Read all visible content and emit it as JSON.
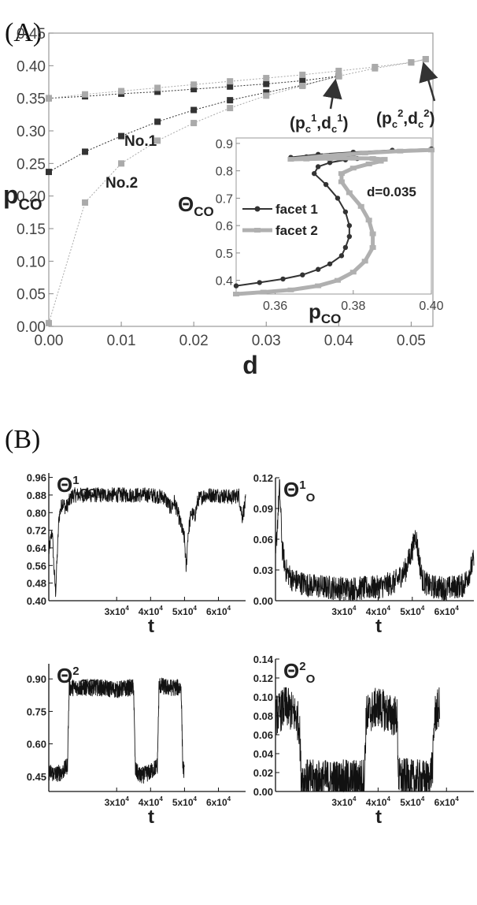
{
  "panel_a_label": "(A)",
  "panel_b_label": "(B)",
  "chart_data": [
    {
      "type": "line",
      "panel": "A",
      "xlabel": "d",
      "ylabel": "p",
      "ylabel_sub": "CO",
      "xlim": [
        0,
        0.053
      ],
      "ylim": [
        0,
        0.45
      ],
      "xticks": [
        "0.00",
        "0.01",
        "0.02",
        "0.03",
        "0.04",
        "0.05"
      ],
      "yticks": [
        "0.00",
        "0.05",
        "0.10",
        "0.15",
        "0.20",
        "0.25",
        "0.30",
        "0.35",
        "0.40",
        "0.45"
      ],
      "annotations": [
        "No.1",
        "No.2"
      ],
      "point_label_1": {
        "p": "p",
        "sub": "c",
        "sup": "1",
        "d": "d",
        "dsub": "c",
        "dsup": "1"
      },
      "point_label_2": {
        "p": "p",
        "sub": "c",
        "sup": "2",
        "d": "d",
        "dsub": "c",
        "dsup": "2"
      },
      "series": [
        {
          "name": "facet1_upper",
          "color": "#333333",
          "x": [
            0,
            0.005,
            0.01,
            0.015,
            0.02,
            0.025,
            0.03,
            0.035,
            0.04
          ],
          "y": [
            0.35,
            0.353,
            0.357,
            0.36,
            0.364,
            0.368,
            0.372,
            0.377,
            0.384
          ]
        },
        {
          "name": "facet1_lower",
          "color": "#333333",
          "x": [
            0,
            0.005,
            0.01,
            0.015,
            0.02,
            0.025,
            0.03,
            0.035,
            0.04
          ],
          "y": [
            0.237,
            0.268,
            0.292,
            0.314,
            0.332,
            0.347,
            0.359,
            0.37,
            0.384
          ]
        },
        {
          "name": "facet2_upper",
          "color": "#aaaaaa",
          "x": [
            0,
            0.005,
            0.01,
            0.015,
            0.02,
            0.025,
            0.03,
            0.035,
            0.04,
            0.045,
            0.05,
            0.052
          ],
          "y": [
            0.35,
            0.356,
            0.361,
            0.366,
            0.371,
            0.376,
            0.381,
            0.386,
            0.392,
            0.398,
            0.405,
            0.41
          ]
        },
        {
          "name": "facet2_lower",
          "color": "#aaaaaa",
          "x": [
            0,
            0.005,
            0.01,
            0.015,
            0.02,
            0.025,
            0.03,
            0.035,
            0.04,
            0.045,
            0.05,
            0.052
          ],
          "y": [
            0.005,
            0.19,
            0.25,
            0.285,
            0.312,
            0.335,
            0.354,
            0.369,
            0.384,
            0.396,
            0.405,
            0.41
          ]
        }
      ],
      "inset": {
        "type": "line",
        "xlabel": "p",
        "xlabel_sub": "CO",
        "ylabel": "Θ",
        "ylabel_sub": "CO",
        "xlim": [
          0.35,
          0.4
        ],
        "ylim": [
          0.35,
          0.92
        ],
        "xticks": [
          "0.36",
          "0.38",
          "0.40"
        ],
        "yticks": [
          "0.4",
          "0.5",
          "0.6",
          "0.7",
          "0.8",
          "0.9"
        ],
        "annotation": "d=0.035",
        "legend": [
          "facet 1",
          "facet 2"
        ],
        "series": [
          {
            "name": "facet 1",
            "color": "#333333",
            "points": [
              [
                0.35,
                0.38
              ],
              [
                0.356,
                0.392
              ],
              [
                0.362,
                0.405
              ],
              [
                0.367,
                0.42
              ],
              [
                0.371,
                0.44
              ],
              [
                0.374,
                0.46
              ],
              [
                0.377,
                0.49
              ],
              [
                0.378,
                0.52
              ],
              [
                0.379,
                0.56
              ],
              [
                0.379,
                0.6
              ],
              [
                0.378,
                0.65
              ],
              [
                0.376,
                0.7
              ],
              [
                0.373,
                0.75
              ],
              [
                0.37,
                0.79
              ],
              [
                0.371,
                0.815
              ],
              [
                0.374,
                0.83
              ],
              [
                0.378,
                0.84
              ],
              [
                0.381,
                0.845
              ],
              [
                0.38,
                0.85
              ],
              [
                0.376,
                0.852
              ],
              [
                0.372,
                0.852
              ],
              [
                0.368,
                0.851
              ],
              [
                0.364,
                0.849
              ],
              [
                0.371,
                0.86
              ],
              [
                0.38,
                0.868
              ],
              [
                0.39,
                0.875
              ],
              [
                0.4,
                0.88
              ]
            ]
          },
          {
            "name": "facet 2",
            "color": "#b0b0b0",
            "points": [
              [
                0.35,
                0.35
              ],
              [
                0.357,
                0.357
              ],
              [
                0.364,
                0.365
              ],
              [
                0.371,
                0.38
              ],
              [
                0.376,
                0.4
              ],
              [
                0.38,
                0.43
              ],
              [
                0.383,
                0.47
              ],
              [
                0.385,
                0.52
              ],
              [
                0.385,
                0.57
              ],
              [
                0.384,
                0.62
              ],
              [
                0.382,
                0.67
              ],
              [
                0.379,
                0.72
              ],
              [
                0.377,
                0.76
              ],
              [
                0.377,
                0.79
              ],
              [
                0.38,
                0.81
              ],
              [
                0.384,
                0.825
              ],
              [
                0.387,
                0.835
              ],
              [
                0.388,
                0.842
              ],
              [
                0.385,
                0.845
              ],
              [
                0.38,
                0.846
              ],
              [
                0.374,
                0.845
              ],
              [
                0.368,
                0.843
              ],
              [
                0.364,
                0.842
              ],
              [
                0.373,
                0.855
              ],
              [
                0.383,
                0.865
              ],
              [
                0.392,
                0.872
              ],
              [
                0.4,
                0.876
              ]
            ]
          }
        ]
      }
    },
    {
      "type": "line",
      "panel": "B1",
      "label": "Θ",
      "label_sup": "1",
      "label_sub": "CO",
      "xlabel": "t",
      "ylim": [
        0.4,
        0.98
      ],
      "xlim": [
        10000,
        68000
      ],
      "yticks": [
        "0.40",
        "0.48",
        "0.56",
        "0.64",
        "0.72",
        "0.80",
        "0.88",
        "0.96"
      ],
      "xticks": [
        {
          "m": "3x10",
          "e": "4"
        },
        {
          "m": "4x10",
          "e": "4"
        },
        {
          "m": "5x10",
          "e": "4"
        },
        {
          "m": "6x10",
          "e": "4"
        }
      ],
      "envelope": {
        "color": "#111111",
        "points": [
          [
            10000,
            0.62
          ],
          [
            11000,
            0.72
          ],
          [
            11500,
            0.55
          ],
          [
            12000,
            0.44
          ],
          [
            13000,
            0.78
          ],
          [
            14000,
            0.85
          ],
          [
            15000,
            0.82
          ],
          [
            17000,
            0.88
          ],
          [
            20000,
            0.88
          ],
          [
            25000,
            0.88
          ],
          [
            30000,
            0.88
          ],
          [
            35000,
            0.88
          ],
          [
            40000,
            0.88
          ],
          [
            44000,
            0.87
          ],
          [
            46000,
            0.82
          ],
          [
            47000,
            0.85
          ],
          [
            48000,
            0.8
          ],
          [
            49000,
            0.74
          ],
          [
            50000,
            0.68
          ],
          [
            50500,
            0.54
          ],
          [
            51000,
            0.7
          ],
          [
            52000,
            0.8
          ],
          [
            53000,
            0.78
          ],
          [
            54000,
            0.86
          ],
          [
            56000,
            0.88
          ],
          [
            60000,
            0.88
          ],
          [
            64000,
            0.87
          ],
          [
            66000,
            0.88
          ],
          [
            67000,
            0.78
          ],
          [
            68000,
            0.85
          ]
        ]
      },
      "noise": 0.035
    },
    {
      "type": "line",
      "panel": "B2",
      "label": "Θ",
      "label_sup": "1",
      "label_sub": "O",
      "xlabel": "t",
      "ylim": [
        0.0,
        0.12
      ],
      "xlim": [
        10000,
        68000
      ],
      "yticks": [
        "0.00",
        "0.03",
        "0.06",
        "0.09",
        "0.12"
      ],
      "xticks": [
        {
          "m": "3x10",
          "e": "4"
        },
        {
          "m": "4x10",
          "e": "4"
        },
        {
          "m": "5x10",
          "e": "4"
        },
        {
          "m": "6x10",
          "e": "4"
        }
      ],
      "envelope": {
        "color": "#111111",
        "points": [
          [
            10000,
            0.04
          ],
          [
            10800,
            0.09
          ],
          [
            11200,
            0.11
          ],
          [
            12000,
            0.05
          ],
          [
            13000,
            0.03
          ],
          [
            15000,
            0.02
          ],
          [
            20000,
            0.015
          ],
          [
            25000,
            0.013
          ],
          [
            30000,
            0.012
          ],
          [
            35000,
            0.012
          ],
          [
            40000,
            0.013
          ],
          [
            45000,
            0.018
          ],
          [
            48000,
            0.03
          ],
          [
            50000,
            0.05
          ],
          [
            51000,
            0.065
          ],
          [
            52000,
            0.04
          ],
          [
            53000,
            0.02
          ],
          [
            55000,
            0.014
          ],
          [
            60000,
            0.012
          ],
          [
            65000,
            0.015
          ],
          [
            67000,
            0.03
          ],
          [
            68000,
            0.04
          ]
        ]
      },
      "noise": 0.012
    },
    {
      "type": "line",
      "panel": "B3",
      "label": "Θ",
      "label_sup": "2",
      "label_sub": "CO",
      "xlabel": "t",
      "ylim": [
        0.38,
        0.97
      ],
      "xlim": [
        10000,
        68000
      ],
      "yticks": [
        "0.45",
        "0.60",
        "0.75",
        "0.90"
      ],
      "xticks": [
        {
          "m": "3x10",
          "e": "4"
        },
        {
          "m": "4x10",
          "e": "4"
        },
        {
          "m": "5x10",
          "e": "4"
        },
        {
          "m": "6x10",
          "e": "4"
        }
      ],
      "envelope": {
        "color": "#111111",
        "points": [
          [
            10000,
            0.47
          ],
          [
            12000,
            0.46
          ],
          [
            14000,
            0.47
          ],
          [
            15500,
            0.5
          ],
          [
            16000,
            0.86
          ],
          [
            20000,
            0.86
          ],
          [
            25000,
            0.86
          ],
          [
            30000,
            0.85
          ],
          [
            34000,
            0.86
          ],
          [
            35000,
            0.86
          ],
          [
            35500,
            0.48
          ],
          [
            37000,
            0.45
          ],
          [
            40000,
            0.47
          ],
          [
            42000,
            0.5
          ],
          [
            42500,
            0.87
          ],
          [
            45000,
            0.86
          ],
          [
            48000,
            0.86
          ],
          [
            49000,
            0.86
          ],
          [
            49500,
            0.5
          ],
          [
            50000,
            0.46
          ]
        ]
      },
      "xspan": [
        10000,
        50000
      ],
      "noise": 0.04
    },
    {
      "type": "line",
      "panel": "B4",
      "label": "Θ",
      "label_sup": "2",
      "label_sub": "O",
      "xlabel": "t",
      "ylim": [
        0.0,
        0.14
      ],
      "xlim": [
        10000,
        68000
      ],
      "yticks": [
        "0.00",
        "0.02",
        "0.04",
        "0.06",
        "0.08",
        "0.10",
        "0.12",
        "0.14"
      ],
      "xticks": [
        {
          "m": "3x10",
          "e": "4"
        },
        {
          "m": "4x10",
          "e": "4"
        },
        {
          "m": "5x10",
          "e": "4"
        },
        {
          "m": "6x10",
          "e": "4"
        }
      ],
      "envelope": {
        "color": "#111111",
        "points": [
          [
            10000,
            0.08
          ],
          [
            13000,
            0.09
          ],
          [
            16000,
            0.08
          ],
          [
            17000,
            0.07
          ],
          [
            17500,
            0.015
          ],
          [
            20000,
            0.012
          ],
          [
            25000,
            0.012
          ],
          [
            30000,
            0.012
          ],
          [
            35000,
            0.013
          ],
          [
            36000,
            0.015
          ],
          [
            36500,
            0.08
          ],
          [
            40000,
            0.09
          ],
          [
            44000,
            0.08
          ],
          [
            45500,
            0.08
          ],
          [
            46000,
            0.015
          ],
          [
            50000,
            0.012
          ],
          [
            55000,
            0.012
          ],
          [
            56000,
            0.03
          ],
          [
            56500,
            0.08
          ],
          [
            58000,
            0.09
          ]
        ]
      },
      "xspan": [
        10000,
        58000
      ],
      "noise": 0.022
    }
  ]
}
